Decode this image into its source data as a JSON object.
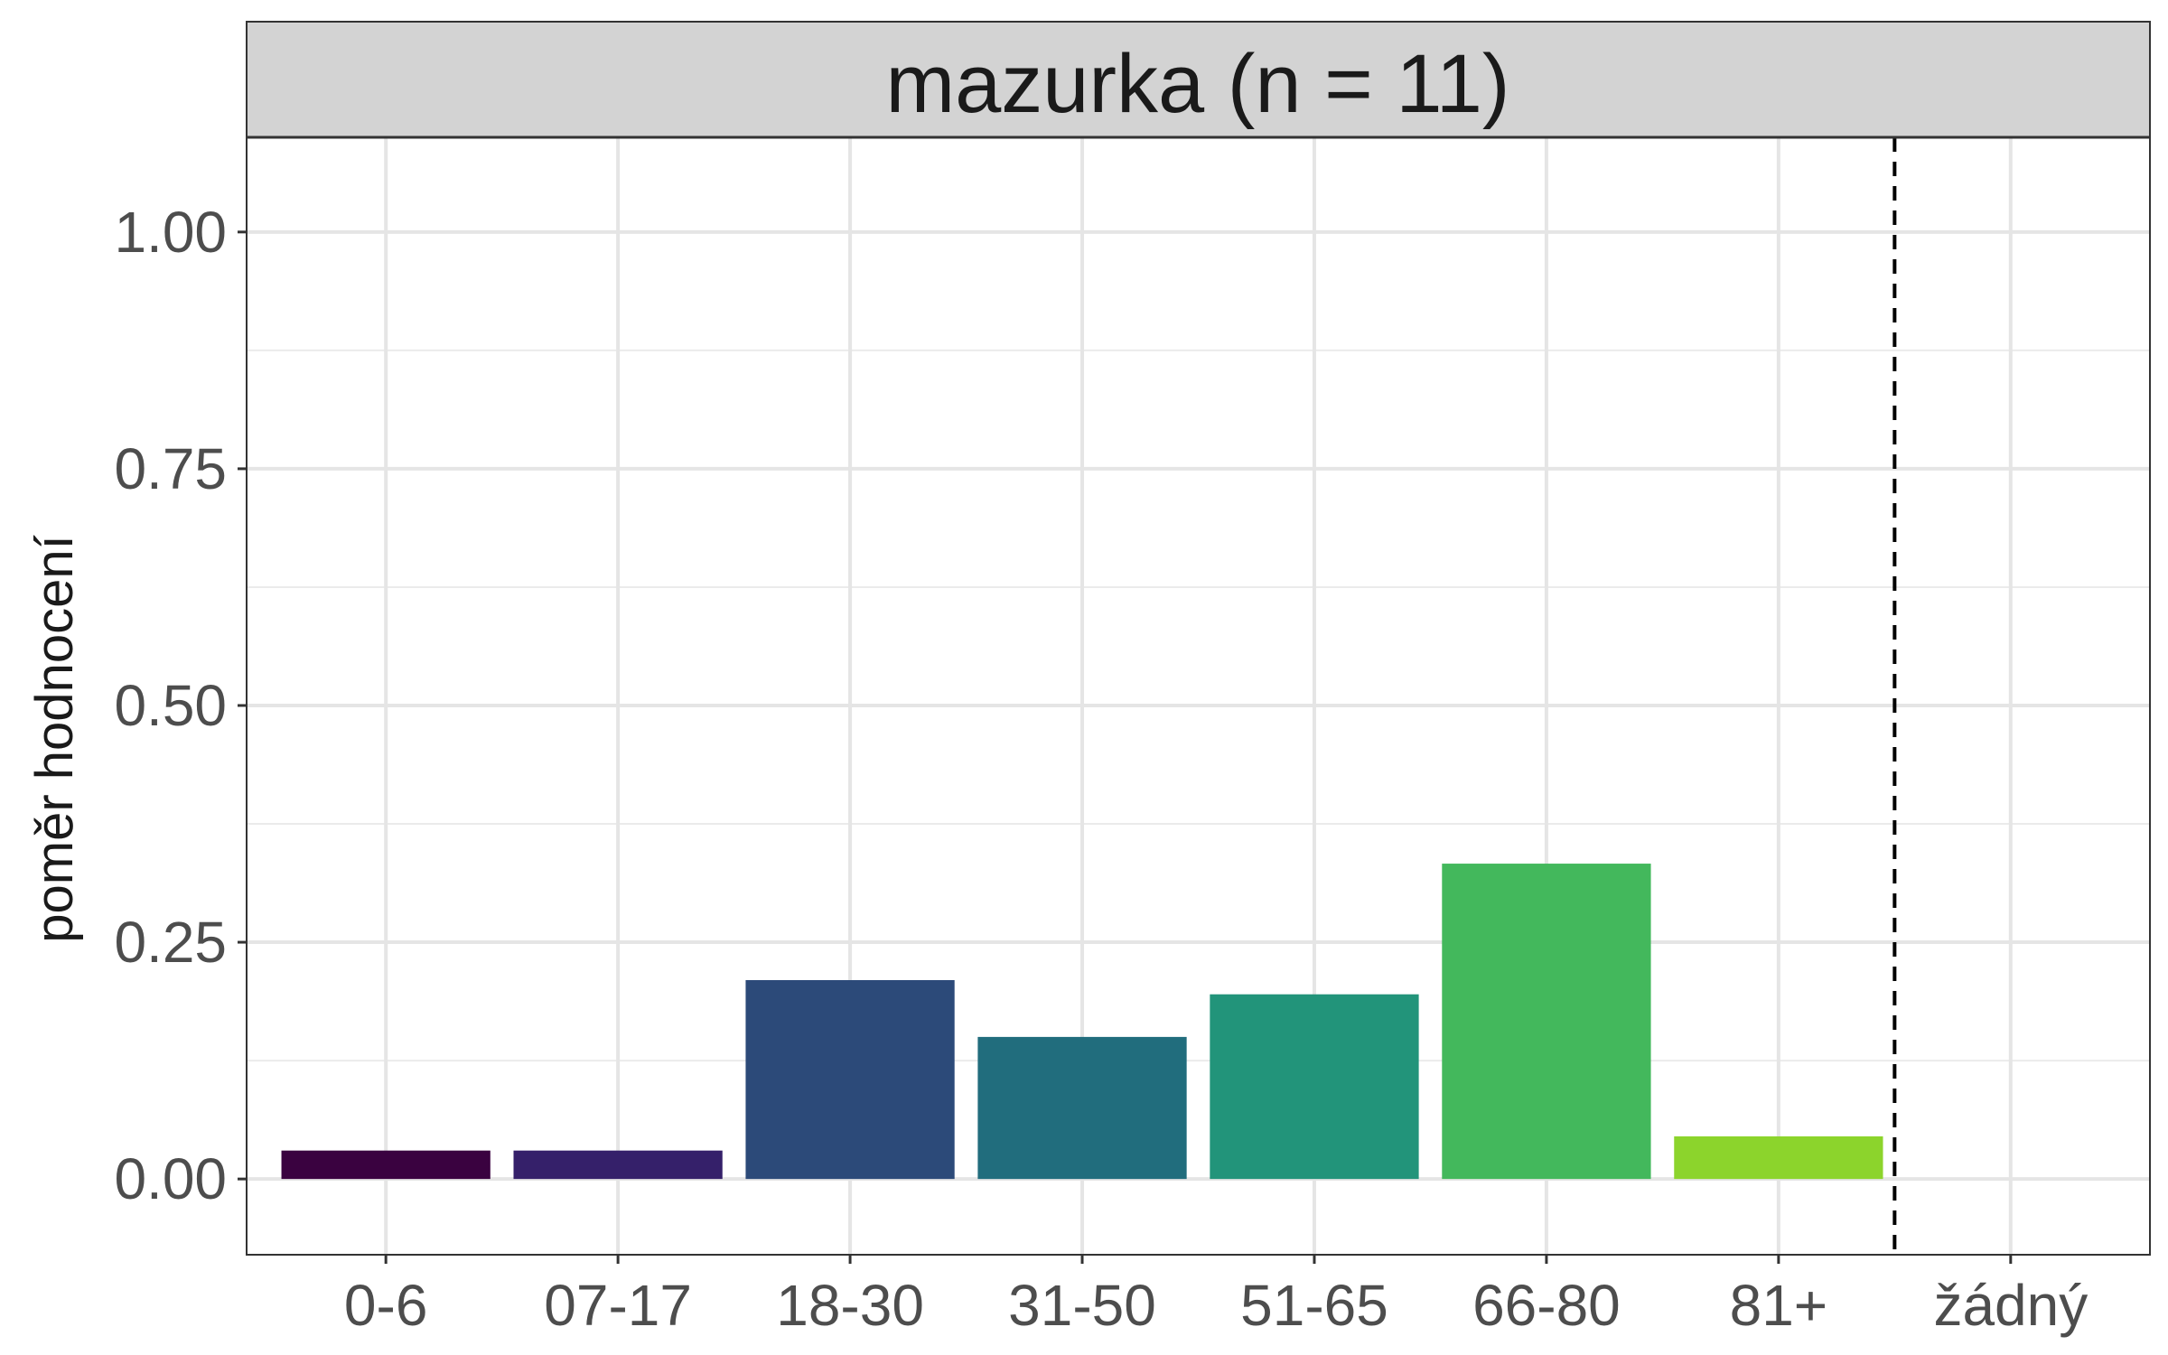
{
  "chart_data": {
    "type": "bar",
    "facet_title": "mazurka (n = 11)",
    "xlabel": "",
    "ylabel": "poměr hodnocení",
    "ylim": [
      -0.08,
      1.1
    ],
    "y_ticks": [
      "0.00",
      "0.25",
      "0.50",
      "0.75",
      "1.00"
    ],
    "categories": [
      "0-6",
      "07-17",
      "18-30",
      "31-50",
      "51-65",
      "66-80",
      "81+",
      "žádný"
    ],
    "values": [
      0.03,
      0.03,
      0.21,
      0.15,
      0.195,
      0.333,
      0.045,
      0
    ],
    "colors": [
      "#3a0240",
      "#35206a",
      "#2c4a79",
      "#216d7d",
      "#22947a",
      "#43b85c",
      "#8cd42c",
      null
    ],
    "reference_line": {
      "style": "dashed",
      "between": [
        "81+",
        "žádný"
      ]
    },
    "grid": true,
    "legend": "none",
    "strip_color": "#d3d3d3"
  }
}
